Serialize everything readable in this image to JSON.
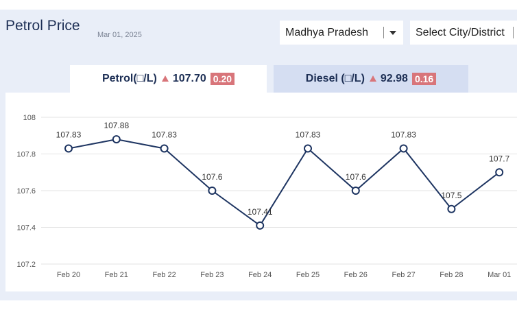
{
  "header": {
    "title": "Petrol Price",
    "date": "Mar 01, 2025"
  },
  "filters": {
    "state": "Madhya Pradesh",
    "city_placeholder": "Select City/District"
  },
  "tabs": [
    {
      "label": "Petrol(□/L)",
      "price": "107.70",
      "change": "0.20",
      "active": true
    },
    {
      "label": "Diesel (□/L)",
      "price": "92.98",
      "change": "0.16",
      "active": false
    }
  ],
  "colors": {
    "line": "#1d3461",
    "up_indicator": "#d8757a",
    "active_tab": "#ffffff",
    "inactive_tab": "#d5def2"
  },
  "chart_data": {
    "type": "line",
    "categories": [
      "Feb 20",
      "Feb 21",
      "Feb 22",
      "Feb 23",
      "Feb 24",
      "Feb 25",
      "Feb 26",
      "Feb 27",
      "Feb 28",
      "Mar 01"
    ],
    "series": [
      {
        "values": [
          107.83,
          107.88,
          107.83,
          107.6,
          107.41,
          107.83,
          107.6,
          107.83,
          107.5,
          107.7
        ],
        "labels": [
          "107.83",
          "107.88",
          "107.83",
          "107.6",
          "107.41",
          "107.83",
          "107.6",
          "107.83",
          "107.5",
          "107.7"
        ]
      }
    ],
    "yticks": [
      "107.2",
      "107.4",
      "107.6",
      "107.8",
      "108"
    ],
    "ylim": [
      107.2,
      108
    ],
    "title": "",
    "xlabel": "",
    "ylabel": "",
    "grid": true,
    "legend": "none"
  }
}
